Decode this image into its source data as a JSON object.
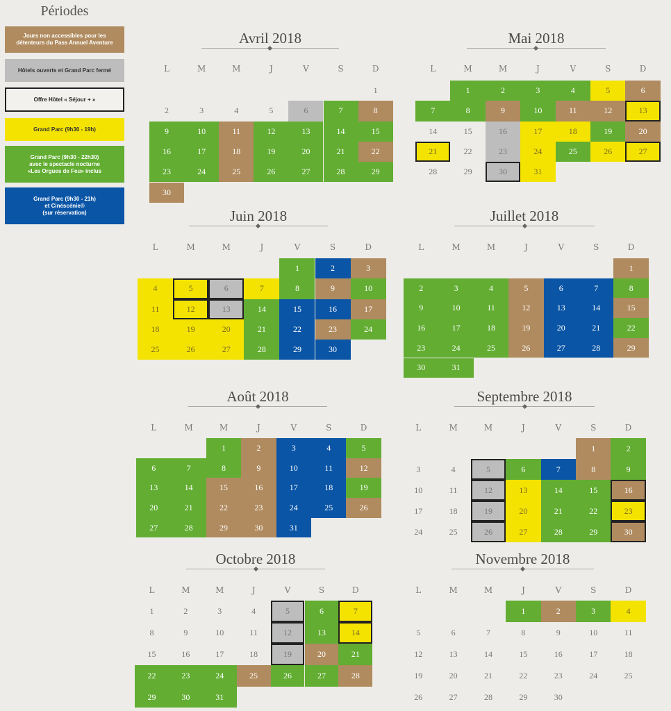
{
  "legend": {
    "title": "Périodes",
    "items": [
      {
        "key": "br",
        "label": "Jours non accessibles pour les\ndétenteurs du Pass Annuel Aventure",
        "bg": "#b08b5f",
        "fg": "#ffffff",
        "framed": false
      },
      {
        "key": "gy",
        "label": "Hôtels ouverts et Grand Parc fermé",
        "bg": "#bdbdbd",
        "fg": "#333333",
        "framed": false
      },
      {
        "key": "fr",
        "label": "Offre Hôtel « Séjour + »",
        "bg": "#f2f1ee",
        "fg": "#222222",
        "framed": true
      },
      {
        "key": "ye",
        "label": "Grand Parc (9h30 - 19h)",
        "bg": "#f4e300",
        "fg": "#333333",
        "framed": false
      },
      {
        "key": "gr",
        "label": "Grand Parc (9h30 - 22h30)\navec le spectacle nocturne\n«Les Orgues de Feu» inclus",
        "bg": "#62ad32",
        "fg": "#ffffff",
        "framed": false
      },
      {
        "key": "bl",
        "label": "Grand Parc (9h30 - 21h)\net Cinéscénie®\n(sur réservation)",
        "bg": "#0a55a6",
        "fg": "#ffffff",
        "framed": false
      }
    ]
  },
  "weekdays": [
    "L",
    "M",
    "M",
    "J",
    "V",
    "S",
    "D"
  ],
  "months": [
    {
      "title": "Avril 2018",
      "first_weekday": 6,
      "days": 30,
      "colors": {
        "6": "gy",
        "7": "gr",
        "8": "br",
        "9": "gr",
        "10": "gr",
        "11": "br",
        "12": "gr",
        "13": "gr",
        "14": "gr",
        "15": "gr",
        "16": "gr",
        "17": "gr",
        "18": "br",
        "19": "gr",
        "20": "gr",
        "21": "gr",
        "22": "br",
        "23": "gr",
        "24": "gr",
        "25": "br",
        "26": "gr",
        "27": "gr",
        "28": "gr",
        "29": "gr",
        "30": "br"
      },
      "framed": []
    },
    {
      "title": "Mai 2018",
      "first_weekday": 1,
      "days": 31,
      "colors": {
        "1": "gr",
        "2": "gr",
        "3": "gr",
        "4": "gr",
        "5": "ye",
        "6": "br",
        "7": "gr",
        "8": "gr",
        "9": "br",
        "10": "gr",
        "11": "br",
        "12": "br",
        "13": "ye",
        "16": "gy",
        "17": "ye",
        "18": "ye",
        "19": "gr",
        "20": "br",
        "21": "ye",
        "23": "gy",
        "24": "ye",
        "25": "gr",
        "26": "ye",
        "27": "ye",
        "30": "gy",
        "31": "ye"
      },
      "framed": [
        13,
        21,
        27,
        30
      ]
    },
    {
      "title": "Juin 2018",
      "first_weekday": 4,
      "days": 30,
      "colors": {
        "1": "gr",
        "2": "bl",
        "3": "br",
        "4": "ye",
        "5": "ye",
        "6": "gy",
        "7": "ye",
        "8": "gr",
        "9": "br",
        "10": "gr",
        "11": "ye",
        "12": "ye",
        "13": "gy",
        "14": "gr",
        "15": "bl",
        "16": "bl",
        "17": "br",
        "18": "ye",
        "19": "ye",
        "20": "ye",
        "21": "gr",
        "22": "bl",
        "23": "br",
        "24": "gr",
        "25": "ye",
        "26": "ye",
        "27": "ye",
        "28": "gr",
        "29": "bl",
        "30": "bl"
      },
      "framed": [
        5,
        6,
        12,
        13
      ]
    },
    {
      "title": "Juillet 2018",
      "first_weekday": 6,
      "days": 31,
      "colors": {
        "1": "br",
        "2": "gr",
        "3": "gr",
        "4": "gr",
        "5": "br",
        "6": "bl",
        "7": "bl",
        "8": "gr",
        "9": "gr",
        "10": "gr",
        "11": "gr",
        "12": "br",
        "13": "bl",
        "14": "bl",
        "15": "br",
        "16": "gr",
        "17": "gr",
        "18": "gr",
        "19": "br",
        "20": "bl",
        "21": "bl",
        "22": "gr",
        "23": "gr",
        "24": "gr",
        "25": "gr",
        "26": "br",
        "27": "bl",
        "28": "bl",
        "29": "br",
        "30": "gr",
        "31": "gr"
      },
      "framed": []
    },
    {
      "title": "Août 2018",
      "first_weekday": 2,
      "days": 31,
      "colors": {
        "1": "gr",
        "2": "br",
        "3": "bl",
        "4": "bl",
        "5": "gr",
        "6": "gr",
        "7": "gr",
        "8": "gr",
        "9": "br",
        "10": "bl",
        "11": "bl",
        "12": "br",
        "13": "gr",
        "14": "gr",
        "15": "br",
        "16": "br",
        "17": "bl",
        "18": "bl",
        "19": "gr",
        "20": "gr",
        "21": "gr",
        "22": "br",
        "23": "br",
        "24": "bl",
        "25": "bl",
        "26": "br",
        "27": "gr",
        "28": "gr",
        "29": "br",
        "30": "br",
        "31": "bl"
      },
      "framed": []
    },
    {
      "title": "Septembre 2018",
      "first_weekday": 5,
      "days": 30,
      "colors": {
        "1": "br",
        "2": "gr",
        "5": "gy",
        "6": "gr",
        "7": "bl",
        "8": "br",
        "9": "gr",
        "12": "gy",
        "13": "ye",
        "14": "gr",
        "15": "gr",
        "16": "br",
        "19": "gy",
        "20": "ye",
        "21": "gr",
        "22": "gr",
        "23": "ye",
        "26": "gy",
        "27": "ye",
        "28": "gr",
        "29": "gr",
        "30": "br"
      },
      "framed": [
        5,
        12,
        19,
        26,
        16,
        23,
        30
      ]
    },
    {
      "title": "Octobre 2018",
      "first_weekday": 0,
      "days": 31,
      "colors": {
        "5": "gy",
        "6": "gr",
        "7": "ye",
        "12": "gy",
        "13": "gr",
        "14": "ye",
        "19": "gy",
        "20": "br",
        "21": "gr",
        "22": "gr",
        "23": "gr",
        "24": "gr",
        "25": "br",
        "26": "gr",
        "27": "gr",
        "28": "br",
        "29": "gr",
        "30": "gr",
        "31": "gr"
      },
      "framed": [
        5,
        12,
        19,
        7,
        14
      ]
    },
    {
      "title": "Novembre 2018",
      "first_weekday": 3,
      "days": 30,
      "colors": {
        "1": "gr",
        "2": "br",
        "3": "gr",
        "4": "ye"
      },
      "framed": []
    }
  ]
}
